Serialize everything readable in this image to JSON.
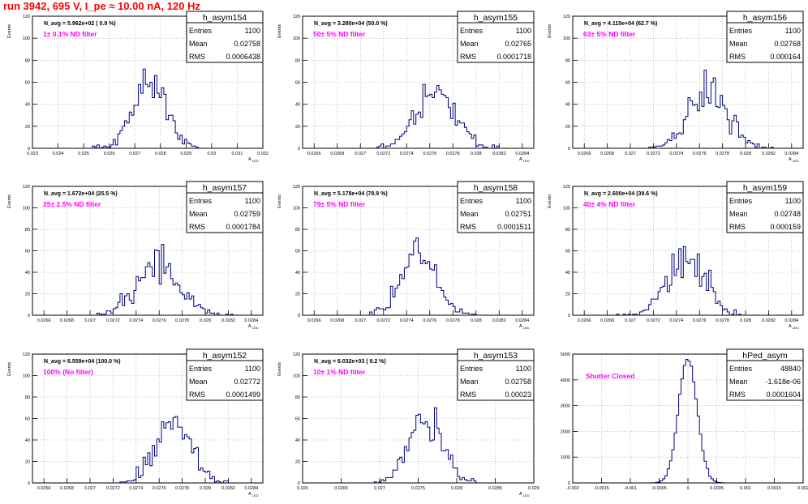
{
  "title": "run 3942,   695 V, I_pe ≈ 10.00 nA, 120 Hz",
  "colors": {
    "title": "#ff0000",
    "histogram": "#000080",
    "filter_text": "#ff00ff",
    "grid": "#999999",
    "frame": "#000000"
  },
  "chart_data": [
    {
      "type": "bar",
      "histogram": "h_asym154",
      "navg": "N_avg = 5.962e+02 ( 0.9 %)",
      "filter": "1± 0.1% ND filter",
      "stats": [
        [
          "Entries",
          "1100"
        ],
        [
          "Mean",
          "0.02758"
        ],
        [
          "RMS",
          "0.0006438"
        ]
      ],
      "ylabel": "Events",
      "xlabel": "A_LED",
      "xlim": [
        0.023,
        0.032
      ],
      "ylim": [
        0,
        120
      ],
      "xticks": [
        "0.023",
        "0.024",
        "0.025",
        "0.026",
        "0.027",
        "0.028",
        "0.029",
        "0.03",
        "0.031",
        "0.032"
      ],
      "yticks": [
        "0",
        "20",
        "40",
        "60",
        "80",
        "100",
        "120"
      ],
      "dist": {
        "mean": 0.02758,
        "rms": 0.0006438,
        "entries": 1100
      }
    },
    {
      "type": "bar",
      "histogram": "h_asym155",
      "navg": "N_avg = 3.280e+04 (50.0 %)",
      "filter": "50± 5% ND filter",
      "stats": [
        [
          "Entries",
          "1100"
        ],
        [
          "Mean",
          "0.02765"
        ],
        [
          "RMS",
          "0.0001718"
        ]
      ],
      "ylabel": "Events",
      "xlabel": "A_LED",
      "xlim": [
        0.0265,
        0.0285
      ],
      "ylim": [
        0,
        120
      ],
      "xticks": [
        "0.0266",
        "0.0268",
        "0.027",
        "0.0272",
        "0.0274",
        "0.0276",
        "0.0278",
        "0.028",
        "0.0282",
        "0.0284"
      ],
      "yticks": [
        "0",
        "20",
        "40",
        "60",
        "80",
        "100",
        "120"
      ],
      "dist": {
        "mean": 0.02765,
        "rms": 0.0001718,
        "entries": 1100
      }
    },
    {
      "type": "bar",
      "histogram": "h_asym156",
      "navg": "N_avg = 4.115e+04 (62.7 %)",
      "filter": "63± 5% ND filter",
      "stats": [
        [
          "Entries",
          "1100"
        ],
        [
          "Mean",
          "0.02768"
        ],
        [
          "RMS",
          "0.000164"
        ]
      ],
      "ylabel": "Events",
      "xlabel": "A_LED",
      "xlim": [
        0.0265,
        0.0285
      ],
      "ylim": [
        0,
        120
      ],
      "xticks": [
        "0.0266",
        "0.0268",
        "0.027",
        "0.0272",
        "0.0274",
        "0.0276",
        "0.0278",
        "0.028",
        "0.0282",
        "0.0284"
      ],
      "yticks": [
        "0",
        "20",
        "40",
        "60",
        "80",
        "100",
        "120"
      ],
      "dist": {
        "mean": 0.02768,
        "rms": 0.000164,
        "entries": 1100
      }
    },
    {
      "type": "bar",
      "histogram": "h_asym157",
      "navg": "N_avg = 1.672e+04 (25.5 %)",
      "filter": "25± 2.5% ND filter",
      "stats": [
        [
          "Entries",
          "1100"
        ],
        [
          "Mean",
          "0.02759"
        ],
        [
          "RMS",
          "0.0001784"
        ]
      ],
      "ylabel": "Events",
      "xlabel": "A_LED",
      "xlim": [
        0.0265,
        0.0285
      ],
      "ylim": [
        0,
        120
      ],
      "xticks": [
        "0.0266",
        "0.0268",
        "0.027",
        "0.0272",
        "0.0274",
        "0.0276",
        "0.0278",
        "0.028",
        "0.0282",
        "0.0284"
      ],
      "yticks": [
        "0",
        "20",
        "40",
        "60",
        "80",
        "100",
        "120"
      ],
      "dist": {
        "mean": 0.02759,
        "rms": 0.0001784,
        "entries": 1100
      }
    },
    {
      "type": "bar",
      "histogram": "h_asym158",
      "navg": "N_avg = 5.178e+04 (78.9 %)",
      "filter": "79± 5% ND filter",
      "stats": [
        [
          "Entries",
          "1100"
        ],
        [
          "Mean",
          "0.02751"
        ],
        [
          "RMS",
          "0.0001511"
        ]
      ],
      "ylabel": "Events",
      "xlabel": "A_LED",
      "xlim": [
        0.0265,
        0.0285
      ],
      "ylim": [
        0,
        120
      ],
      "xticks": [
        "0.0266",
        "0.0268",
        "0.027",
        "0.0272",
        "0.0274",
        "0.0276",
        "0.0278",
        "0.028",
        "0.0282",
        "0.0284"
      ],
      "yticks": [
        "0",
        "20",
        "40",
        "60",
        "80",
        "100",
        "120"
      ],
      "dist": {
        "mean": 0.02751,
        "rms": 0.0001511,
        "entries": 1100
      }
    },
    {
      "type": "bar",
      "histogram": "h_asym159",
      "navg": "N_avg = 2.600e+04 (39.6 %)",
      "filter": "40± 4% ND filter",
      "stats": [
        [
          "Entries",
          "1100"
        ],
        [
          "Mean",
          "0.02748"
        ],
        [
          "RMS",
          "0.000159"
        ]
      ],
      "ylabel": "Events",
      "xlabel": "A_LED",
      "xlim": [
        0.0265,
        0.0285
      ],
      "ylim": [
        0,
        120
      ],
      "xticks": [
        "0.0266",
        "0.0268",
        "0.027",
        "0.0272",
        "0.0274",
        "0.0276",
        "0.0278",
        "0.028",
        "0.0282",
        "0.0284"
      ],
      "yticks": [
        "0",
        "20",
        "40",
        "60",
        "80",
        "100",
        "120"
      ],
      "dist": {
        "mean": 0.02748,
        "rms": 0.000159,
        "entries": 1100
      }
    },
    {
      "type": "bar",
      "histogram": "h_asym152",
      "navg": "N_avg = 6.559e+04 (100.0 %)",
      "filter": "100% (No filter)",
      "stats": [
        [
          "Entries",
          "1100"
        ],
        [
          "Mean",
          "0.02772"
        ],
        [
          "RMS",
          "0.0001499"
        ]
      ],
      "ylabel": "Events",
      "xlabel": "A_LED",
      "xlim": [
        0.0265,
        0.0285
      ],
      "ylim": [
        0,
        120
      ],
      "xticks": [
        "0.0266",
        "0.0268",
        "0.027",
        "0.0272",
        "0.0274",
        "0.0276",
        "0.0278",
        "0.028",
        "0.0282",
        "0.0284"
      ],
      "yticks": [
        "0",
        "20",
        "40",
        "60",
        "80",
        "100",
        "120"
      ],
      "dist": {
        "mean": 0.02772,
        "rms": 0.0001499,
        "entries": 1100
      }
    },
    {
      "type": "bar",
      "histogram": "h_asym153",
      "navg": "N_avg = 6.032e+03 ( 9.2 %)",
      "filter": "10± 1% ND filter",
      "stats": [
        [
          "Entries",
          "1100"
        ],
        [
          "Mean",
          "0.02758"
        ],
        [
          "RMS",
          "0.00023"
        ]
      ],
      "ylabel": "Events",
      "xlabel": "A_LED",
      "xlim": [
        0.026,
        0.029
      ],
      "ylim": [
        0,
        120
      ],
      "xticks": [
        "0.026",
        "0.0265",
        "0.027",
        "0.0275",
        "0.028",
        "0.0285",
        "0.029"
      ],
      "yticks": [
        "0",
        "20",
        "40",
        "60",
        "80",
        "100",
        "120"
      ],
      "dist": {
        "mean": 0.02758,
        "rms": 0.00023,
        "entries": 1100
      }
    },
    {
      "type": "bar",
      "histogram": "hPed_asym",
      "navg": "",
      "filter": "Shutter Closed",
      "stats": [
        [
          "Entries",
          "48840"
        ],
        [
          "Mean",
          "-1.618e-06"
        ],
        [
          "RMS",
          "0.0001604"
        ]
      ],
      "ylabel": "",
      "xlabel": "",
      "xlim": [
        -0.002,
        0.002
      ],
      "ylim": [
        0,
        5000
      ],
      "xticks": [
        "-0.002",
        "-0.0015",
        "-0.001",
        "-0.0005",
        "0",
        "0.0005",
        "0.001",
        "0.0015",
        "0.002"
      ],
      "yticks": [
        "0",
        "1000",
        "2000",
        "3000",
        "4000",
        "5000"
      ],
      "dist": {
        "mean": -1.618e-06,
        "rms": 0.0001604,
        "entries": 48840
      }
    }
  ]
}
